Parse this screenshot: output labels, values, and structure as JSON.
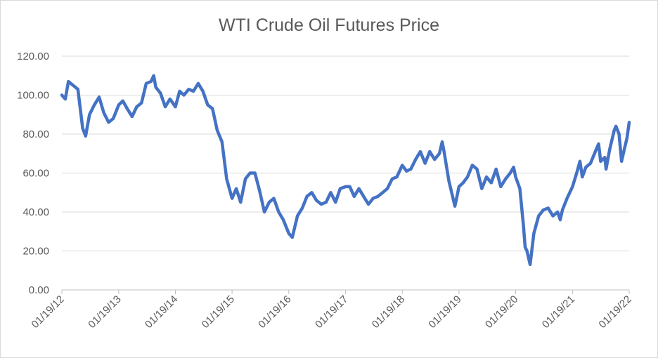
{
  "chart_data": {
    "type": "line",
    "title": "WTI Crude Oil Futures Price",
    "xlabel": "",
    "ylabel": "",
    "ylim": [
      0,
      120
    ],
    "grid": true,
    "legend": "none",
    "line_color": "#4472c4",
    "y_ticks": [
      "0.00",
      "20.00",
      "40.00",
      "60.00",
      "80.00",
      "100.00",
      "120.00"
    ],
    "x_ticks": [
      "01/19/12",
      "01/19/13",
      "01/19/14",
      "01/19/15",
      "01/19/16",
      "01/19/17",
      "01/19/18",
      "01/19/19",
      "01/19/20",
      "01/19/21",
      "01/19/22"
    ],
    "series": [
      {
        "points": [
          [
            "01/19/12",
            100
          ],
          [
            "02/10/12",
            98
          ],
          [
            "03/01/12",
            107
          ],
          [
            "04/01/12",
            105
          ],
          [
            "05/01/12",
            103
          ],
          [
            "06/01/12",
            83
          ],
          [
            "06/20/12",
            79
          ],
          [
            "07/15/12",
            90
          ],
          [
            "08/15/12",
            95
          ],
          [
            "09/15/12",
            99
          ],
          [
            "10/15/12",
            91
          ],
          [
            "11/15/12",
            86
          ],
          [
            "12/15/12",
            88
          ],
          [
            "01/19/13",
            95
          ],
          [
            "02/15/13",
            97
          ],
          [
            "03/15/13",
            93
          ],
          [
            "04/15/13",
            89
          ],
          [
            "05/15/13",
            94
          ],
          [
            "06/15/13",
            96
          ],
          [
            "07/15/13",
            106
          ],
          [
            "08/15/13",
            107
          ],
          [
            "09/01/13",
            110
          ],
          [
            "09/15/13",
            104
          ],
          [
            "10/15/13",
            101
          ],
          [
            "11/15/13",
            94
          ],
          [
            "12/15/13",
            98
          ],
          [
            "01/19/14",
            94
          ],
          [
            "02/15/14",
            102
          ],
          [
            "03/15/14",
            100
          ],
          [
            "04/15/14",
            103
          ],
          [
            "05/15/14",
            102
          ],
          [
            "06/15/14",
            106
          ],
          [
            "07/15/14",
            102
          ],
          [
            "08/15/14",
            95
          ],
          [
            "09/15/14",
            93
          ],
          [
            "10/15/14",
            82
          ],
          [
            "11/15/14",
            76
          ],
          [
            "12/15/14",
            57
          ],
          [
            "01/19/15",
            47
          ],
          [
            "02/15/15",
            52
          ],
          [
            "03/15/15",
            45
          ],
          [
            "04/15/15",
            57
          ],
          [
            "05/15/15",
            60
          ],
          [
            "06/15/15",
            60
          ],
          [
            "07/15/15",
            51
          ],
          [
            "08/15/15",
            40
          ],
          [
            "09/15/15",
            45
          ],
          [
            "10/15/15",
            47
          ],
          [
            "11/15/15",
            40
          ],
          [
            "12/15/15",
            36
          ],
          [
            "01/19/16",
            29
          ],
          [
            "02/11/16",
            27
          ],
          [
            "03/15/16",
            38
          ],
          [
            "04/15/16",
            42
          ],
          [
            "05/15/16",
            48
          ],
          [
            "06/15/16",
            50
          ],
          [
            "07/15/16",
            46
          ],
          [
            "08/15/16",
            44
          ],
          [
            "09/15/16",
            45
          ],
          [
            "10/15/16",
            50
          ],
          [
            "11/15/16",
            45
          ],
          [
            "12/15/16",
            52
          ],
          [
            "01/19/17",
            53
          ],
          [
            "02/15/17",
            53
          ],
          [
            "03/15/17",
            48
          ],
          [
            "04/15/17",
            52
          ],
          [
            "05/15/17",
            48
          ],
          [
            "06/15/17",
            44
          ],
          [
            "07/15/17",
            47
          ],
          [
            "08/15/17",
            48
          ],
          [
            "09/15/17",
            50
          ],
          [
            "10/15/17",
            52
          ],
          [
            "11/15/17",
            57
          ],
          [
            "12/15/17",
            58
          ],
          [
            "01/19/18",
            64
          ],
          [
            "02/15/18",
            61
          ],
          [
            "03/15/18",
            62
          ],
          [
            "04/15/18",
            67
          ],
          [
            "05/15/18",
            71
          ],
          [
            "06/15/18",
            65
          ],
          [
            "07/15/18",
            71
          ],
          [
            "08/15/18",
            67
          ],
          [
            "09/15/18",
            70
          ],
          [
            "10/03/18",
            76
          ],
          [
            "10/15/18",
            71
          ],
          [
            "11/15/18",
            56
          ],
          [
            "12/24/18",
            43
          ],
          [
            "01/19/19",
            53
          ],
          [
            "02/15/19",
            55
          ],
          [
            "03/15/19",
            58
          ],
          [
            "04/15/19",
            64
          ],
          [
            "05/15/19",
            62
          ],
          [
            "06/15/19",
            52
          ],
          [
            "07/15/19",
            58
          ],
          [
            "08/15/19",
            55
          ],
          [
            "09/15/19",
            62
          ],
          [
            "10/15/19",
            53
          ],
          [
            "11/15/19",
            57
          ],
          [
            "12/15/19",
            60
          ],
          [
            "01/06/20",
            63
          ],
          [
            "01/19/20",
            58
          ],
          [
            "02/15/20",
            52
          ],
          [
            "03/09/20",
            33
          ],
          [
            "03/20/20",
            22
          ],
          [
            "04/01/20",
            20
          ],
          [
            "04/21/20",
            13
          ],
          [
            "05/15/20",
            29
          ],
          [
            "06/15/20",
            38
          ],
          [
            "07/15/20",
            41
          ],
          [
            "08/15/20",
            42
          ],
          [
            "09/15/20",
            38
          ],
          [
            "10/15/20",
            40
          ],
          [
            "11/01/20",
            36
          ],
          [
            "11/15/20",
            41
          ],
          [
            "12/15/20",
            47
          ],
          [
            "01/19/21",
            53
          ],
          [
            "02/15/21",
            60
          ],
          [
            "03/08/21",
            66
          ],
          [
            "03/23/21",
            58
          ],
          [
            "04/15/21",
            63
          ],
          [
            "05/15/21",
            65
          ],
          [
            "06/15/21",
            71
          ],
          [
            "07/06/21",
            75
          ],
          [
            "07/19/21",
            66
          ],
          [
            "08/15/21",
            68
          ],
          [
            "08/23/21",
            62
          ],
          [
            "09/15/21",
            72
          ],
          [
            "10/15/21",
            82
          ],
          [
            "10/26/21",
            84
          ],
          [
            "11/15/21",
            80
          ],
          [
            "12/01/21",
            66
          ],
          [
            "12/15/21",
            71
          ],
          [
            "01/05/22",
            78
          ],
          [
            "01/19/22",
            86
          ]
        ]
      }
    ]
  }
}
